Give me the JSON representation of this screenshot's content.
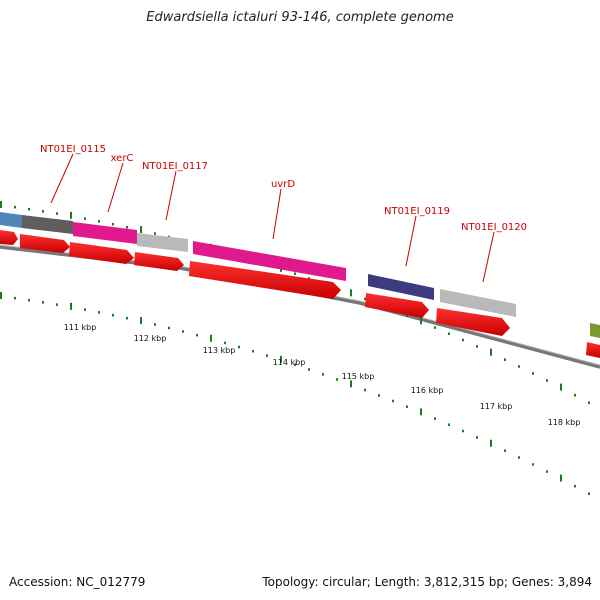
{
  "header": {
    "title": "Edwardsiella ictaluri 93-146, complete genome"
  },
  "footer": {
    "accession": "Accession: NC_012779",
    "summary": "Topology: circular; Length: 3,812,315 bp; Genes: 3,894"
  },
  "axis": {
    "kbp_labels": [
      "111 kbp",
      "112 kbp",
      "113 kbp",
      "114 kbp",
      "115 kbp",
      "116 kbp",
      "117 kbp",
      "118 kbp"
    ]
  },
  "genes": [
    {
      "id": "g-blue",
      "label": "",
      "color": "#4f86b8"
    },
    {
      "id": "g-gray",
      "label": "NT01EI_0115",
      "color": "#5e5e5e"
    },
    {
      "id": "g-xerc",
      "label": "xerC",
      "color": "#e0198f"
    },
    {
      "id": "g-0117",
      "label": "NT01EI_0117",
      "color": "#b9b9b9"
    },
    {
      "id": "g-uvrd",
      "label": "uvrD",
      "color": "#e0198f"
    },
    {
      "id": "g-0119",
      "label": "NT01EI_0119",
      "color": "#3e3a80"
    },
    {
      "id": "g-0120",
      "label": "NT01EI_0120",
      "color": "#b9b9b9"
    },
    {
      "id": "g-olive",
      "label": "",
      "color": "#7a9a2e"
    }
  ],
  "colors": {
    "cds_arrow": "#ee0000",
    "tick": "#1e7a1e",
    "backbone": "#777777"
  }
}
